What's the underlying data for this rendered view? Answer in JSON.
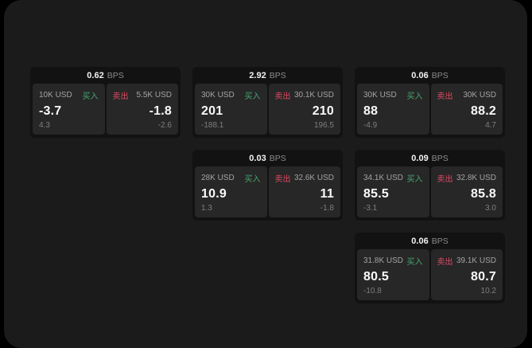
{
  "labels": {
    "bps_unit": "BPS",
    "buy": "买入",
    "sell": "卖出"
  },
  "colors": {
    "page_background": "#000000",
    "container_background": "#1b1b1c",
    "card_background": "#121212",
    "panel_background": "#272727",
    "buy_accent": "#42a86e",
    "sell_accent": "#dd4a63",
    "primary_text": "#fafafa",
    "muted_text": "#a3a3a3"
  },
  "cards": [
    {
      "bps": "0.62",
      "buy": {
        "amount": "10K USD",
        "value": "-3.7",
        "sub": "4.3"
      },
      "sell": {
        "amount": "5.5K USD",
        "value": "-1.8",
        "sub": "-2.6"
      }
    },
    {
      "bps": "2.92",
      "buy": {
        "amount": "30K USD",
        "value": "201",
        "sub": "-188.1"
      },
      "sell": {
        "amount": "30.1K USD",
        "value": "210",
        "sub": "196.5"
      }
    },
    {
      "bps": "0.06",
      "buy": {
        "amount": "30K USD",
        "value": "88",
        "sub": "-4.9"
      },
      "sell": {
        "amount": "30K USD",
        "value": "88.2",
        "sub": "4.7"
      }
    },
    {
      "bps": "0.03",
      "buy": {
        "amount": "28K USD",
        "value": "10.9",
        "sub": "1.3"
      },
      "sell": {
        "amount": "32.6K USD",
        "value": "11",
        "sub": "-1.8"
      }
    },
    {
      "bps": "0.09",
      "buy": {
        "amount": "34.1K USD",
        "value": "85.5",
        "sub": "-3.1"
      },
      "sell": {
        "amount": "32.8K USD",
        "value": "85.8",
        "sub": "3.0"
      }
    },
    {
      "bps": "0.06",
      "buy": {
        "amount": "31.8K USD",
        "value": "80.5",
        "sub": "-10.8"
      },
      "sell": {
        "amount": "39.1K USD",
        "value": "80.7",
        "sub": "10.2"
      }
    }
  ]
}
